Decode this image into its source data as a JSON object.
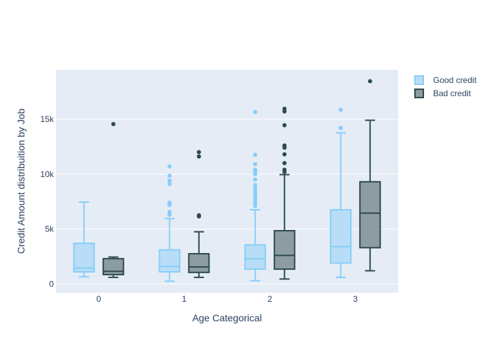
{
  "chart_data": {
    "type": "box",
    "xlabel": "Age Categorical",
    "ylabel": "Credit Amount distribuition by Job",
    "categories": [
      "0",
      "1",
      "2",
      "3"
    ],
    "ylim": [
      -800,
      19500
    ],
    "yticks": [
      0,
      5000,
      10000,
      15000
    ],
    "ytick_labels": [
      "0",
      "5k",
      "10k",
      "15k"
    ],
    "grid": true,
    "legend_position": "top-right",
    "series": [
      {
        "name": "Good credit",
        "color": "#87CEFA",
        "fill": "#B9DDF6",
        "boxes": [
          {
            "category": "0",
            "min": 650,
            "q1": 1100,
            "median": 1450,
            "q3": 3700,
            "max": 7450,
            "outliers": []
          },
          {
            "category": "1",
            "min": 250,
            "q1": 1100,
            "median": 1600,
            "q3": 3100,
            "max": 5950,
            "outliers": [
              6300,
              6550,
              7200,
              7300,
              7400,
              9100,
              9400,
              9850,
              10700
            ]
          },
          {
            "category": "2",
            "min": 300,
            "q1": 1350,
            "median": 2300,
            "q3": 3550,
            "max": 6750,
            "outliers": [
              7100,
              7300,
              7500,
              7700,
              7950,
              8200,
              8450,
              8700,
              9000,
              9500,
              10000,
              10200,
              10400,
              10900,
              11750,
              15650
            ]
          },
          {
            "category": "3",
            "min": 600,
            "q1": 1900,
            "median": 3400,
            "q3": 6750,
            "max": 13750,
            "outliers": [
              14200,
              15850
            ]
          }
        ]
      },
      {
        "name": "Bad credit",
        "color": "#2E4A4F",
        "fill": "#8C9CA0",
        "boxes": [
          {
            "category": "0",
            "min": 600,
            "q1": 850,
            "median": 1150,
            "q3": 2300,
            "max": 2450,
            "outliers": [
              14550
            ]
          },
          {
            "category": "1",
            "min": 600,
            "q1": 1050,
            "median": 1550,
            "q3": 2750,
            "max": 4750,
            "outliers": [
              6150,
              6250,
              11600,
              12000
            ]
          },
          {
            "category": "2",
            "min": 450,
            "q1": 1350,
            "median": 2600,
            "q3": 4850,
            "max": 9950,
            "outliers": [
              10200,
              10400,
              11000,
              11800,
              12400,
              12600,
              14450,
              15700,
              15950
            ]
          },
          {
            "category": "3",
            "min": 1200,
            "q1": 3300,
            "median": 6450,
            "q3": 9300,
            "max": 14900,
            "outliers": [
              18450
            ]
          }
        ]
      }
    ]
  }
}
